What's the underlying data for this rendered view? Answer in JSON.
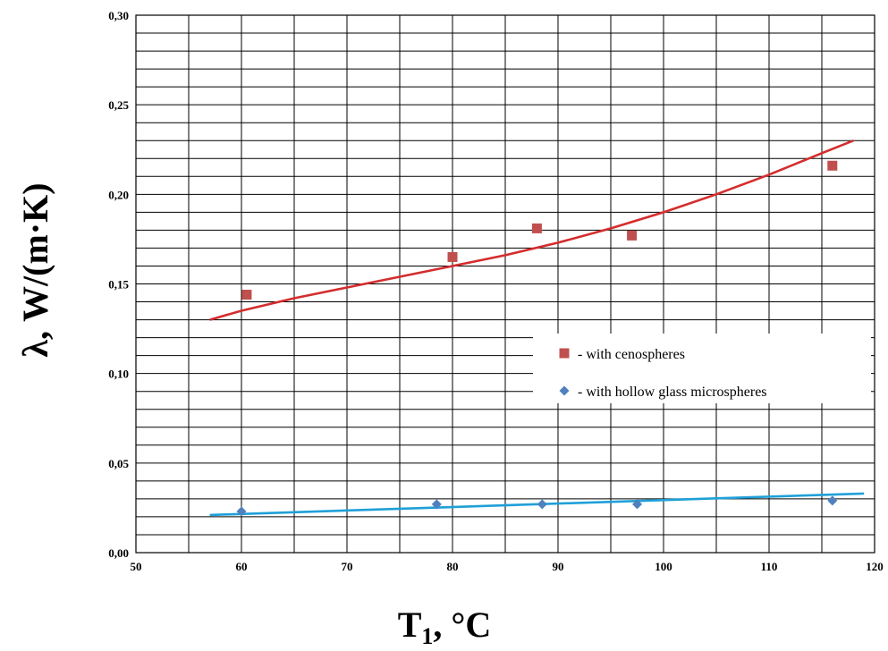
{
  "chart_data": {
    "type": "scatter",
    "ylabel": "λ, W/(m·K)",
    "xlabel_main": "T",
    "xlabel_sub": "1",
    "xlabel_rest": ", °C",
    "xlim": [
      50,
      120
    ],
    "ylim": [
      0,
      0.3
    ],
    "x_ticks": [
      50,
      60,
      70,
      80,
      90,
      100,
      110,
      120
    ],
    "x_tick_labels": [
      "50",
      "60",
      "70",
      "80",
      "90",
      "100",
      "110",
      "120"
    ],
    "y_ticks": [
      0,
      0.05,
      0.1,
      0.15,
      0.2,
      0.25,
      0.3
    ],
    "y_tick_labels": [
      "0,00",
      "0,05",
      "0,10",
      "0,15",
      "0,20",
      "0,25",
      "0,30"
    ],
    "grid": true,
    "grid_minor_x": 5,
    "grid_minor_y": 0.01,
    "legend_position": "center-right",
    "series": [
      {
        "name": "- with cenospheres",
        "marker": "square",
        "color": "#c0504d",
        "x": [
          60.5,
          80,
          88,
          97,
          116
        ],
        "y": [
          0.144,
          0.165,
          0.181,
          0.177,
          0.216
        ],
        "trend_color": "#d42d2d",
        "trend_x": [
          57,
          60,
          65,
          70,
          75,
          80,
          85,
          90,
          95,
          100,
          105,
          110,
          115,
          118
        ],
        "trend_y": [
          0.13,
          0.135,
          0.142,
          0.148,
          0.154,
          0.16,
          0.166,
          0.173,
          0.181,
          0.19,
          0.2,
          0.211,
          0.223,
          0.23
        ]
      },
      {
        "name": "- with hollow glass microspheres",
        "marker": "diamond",
        "color": "#4f81bd",
        "x": [
          60,
          78.5,
          88.5,
          97.5,
          116
        ],
        "y": [
          0.023,
          0.027,
          0.027,
          0.027,
          0.029
        ],
        "trend_color": "#1fa0d8",
        "trend_x": [
          57,
          119
        ],
        "trend_y": [
          0.021,
          0.033
        ]
      }
    ]
  }
}
